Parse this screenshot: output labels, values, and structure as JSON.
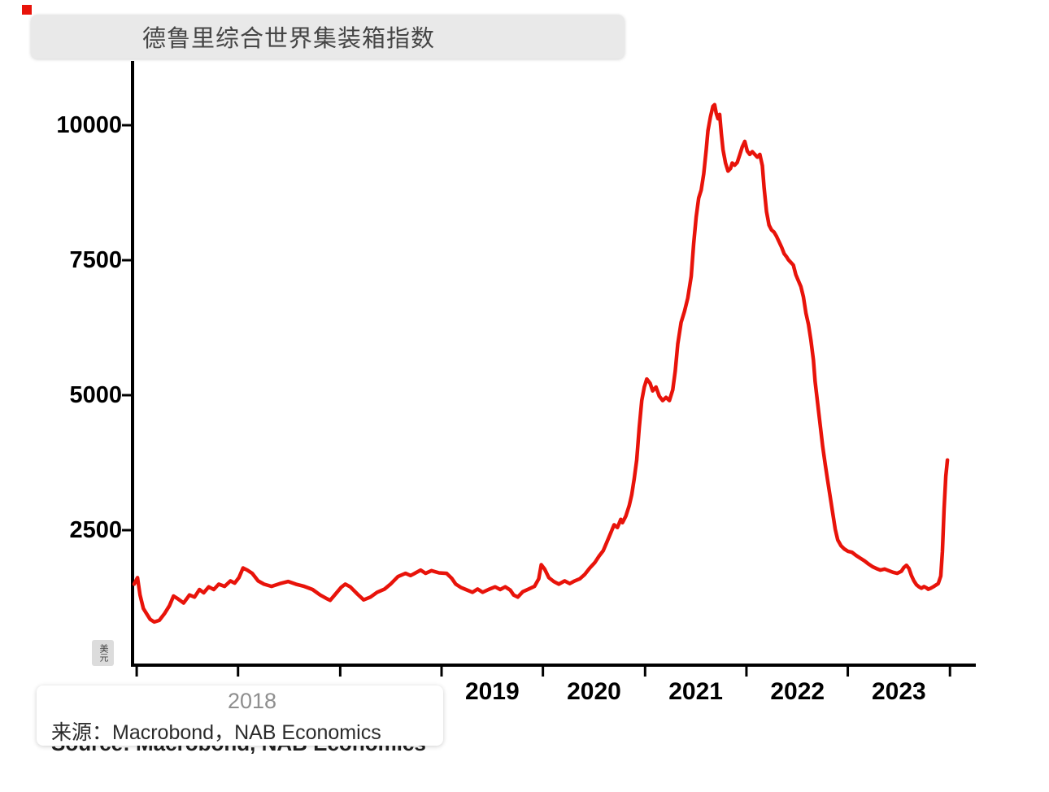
{
  "title": {
    "text": "德鲁里综合世界集装箱指数"
  },
  "y_axis_unit_label": "美元",
  "source_overlay": {
    "year_label": "2018",
    "text": "来源：Macrobond，NAB Economics"
  },
  "source_original": {
    "text": "Source: Macrobond, NAB Economics"
  },
  "chart_data": {
    "type": "line",
    "title": "德鲁里综合世界集装箱指数",
    "xlabel": "",
    "ylabel": "",
    "legend": "none",
    "grid": false,
    "series_color": "#e8130a",
    "axis_color": "#000000",
    "ylim": [
      0,
      11000
    ],
    "y_ticks": [
      2500,
      5000,
      7500,
      10000
    ],
    "x_note": "x stored as fraction of plot width; axis spans approx 2016 through early 2024, one visible tick per year start",
    "x_tick_marks": [
      0.003,
      0.124,
      0.246,
      0.367,
      0.488,
      0.61,
      0.731,
      0.852,
      0.974
    ],
    "x_tick_labels": [
      {
        "label": "2019",
        "pos": 0.4275
      },
      {
        "label": "2020",
        "pos": 0.549
      },
      {
        "label": "2021",
        "pos": 0.6705
      },
      {
        "label": "2022",
        "pos": 0.792
      },
      {
        "label": "2023",
        "pos": 0.913
      }
    ],
    "points": [
      [
        0.0,
        1500
      ],
      [
        0.004,
        1620
      ],
      [
        0.007,
        1300
      ],
      [
        0.011,
        1050
      ],
      [
        0.015,
        950
      ],
      [
        0.019,
        850
      ],
      [
        0.024,
        800
      ],
      [
        0.03,
        830
      ],
      [
        0.036,
        950
      ],
      [
        0.042,
        1100
      ],
      [
        0.047,
        1280
      ],
      [
        0.052,
        1230
      ],
      [
        0.059,
        1150
      ],
      [
        0.066,
        1300
      ],
      [
        0.072,
        1260
      ],
      [
        0.078,
        1400
      ],
      [
        0.083,
        1340
      ],
      [
        0.089,
        1450
      ],
      [
        0.095,
        1400
      ],
      [
        0.101,
        1500
      ],
      [
        0.108,
        1460
      ],
      [
        0.115,
        1560
      ],
      [
        0.12,
        1520
      ],
      [
        0.125,
        1620
      ],
      [
        0.13,
        1800
      ],
      [
        0.135,
        1760
      ],
      [
        0.141,
        1700
      ],
      [
        0.148,
        1560
      ],
      [
        0.155,
        1500
      ],
      [
        0.164,
        1460
      ],
      [
        0.174,
        1510
      ],
      [
        0.184,
        1550
      ],
      [
        0.193,
        1500
      ],
      [
        0.203,
        1460
      ],
      [
        0.213,
        1400
      ],
      [
        0.222,
        1300
      ],
      [
        0.229,
        1240
      ],
      [
        0.234,
        1200
      ],
      [
        0.24,
        1310
      ],
      [
        0.247,
        1440
      ],
      [
        0.252,
        1500
      ],
      [
        0.258,
        1450
      ],
      [
        0.267,
        1310
      ],
      [
        0.274,
        1210
      ],
      [
        0.282,
        1260
      ],
      [
        0.29,
        1350
      ],
      [
        0.299,
        1410
      ],
      [
        0.306,
        1500
      ],
      [
        0.315,
        1640
      ],
      [
        0.324,
        1700
      ],
      [
        0.33,
        1660
      ],
      [
        0.336,
        1710
      ],
      [
        0.342,
        1760
      ],
      [
        0.348,
        1700
      ],
      [
        0.355,
        1750
      ],
      [
        0.364,
        1710
      ],
      [
        0.373,
        1700
      ],
      [
        0.379,
        1610
      ],
      [
        0.384,
        1500
      ],
      [
        0.39,
        1440
      ],
      [
        0.396,
        1400
      ],
      [
        0.404,
        1350
      ],
      [
        0.41,
        1410
      ],
      [
        0.416,
        1350
      ],
      [
        0.423,
        1400
      ],
      [
        0.431,
        1450
      ],
      [
        0.437,
        1400
      ],
      [
        0.443,
        1450
      ],
      [
        0.449,
        1390
      ],
      [
        0.453,
        1300
      ],
      [
        0.458,
        1260
      ],
      [
        0.464,
        1360
      ],
      [
        0.471,
        1410
      ],
      [
        0.478,
        1460
      ],
      [
        0.483,
        1600
      ],
      [
        0.486,
        1860
      ],
      [
        0.49,
        1780
      ],
      [
        0.495,
        1620
      ],
      [
        0.501,
        1550
      ],
      [
        0.507,
        1500
      ],
      [
        0.514,
        1560
      ],
      [
        0.52,
        1510
      ],
      [
        0.526,
        1560
      ],
      [
        0.532,
        1600
      ],
      [
        0.538,
        1680
      ],
      [
        0.544,
        1800
      ],
      [
        0.55,
        1900
      ],
      [
        0.555,
        2020
      ],
      [
        0.56,
        2120
      ],
      [
        0.565,
        2300
      ],
      [
        0.569,
        2450
      ],
      [
        0.573,
        2600
      ],
      [
        0.577,
        2550
      ],
      [
        0.581,
        2700
      ],
      [
        0.583,
        2640
      ],
      [
        0.587,
        2760
      ],
      [
        0.591,
        2950
      ],
      [
        0.594,
        3150
      ],
      [
        0.597,
        3450
      ],
      [
        0.6,
        3800
      ],
      [
        0.603,
        4400
      ],
      [
        0.606,
        4900
      ],
      [
        0.609,
        5150
      ],
      [
        0.612,
        5300
      ],
      [
        0.616,
        5220
      ],
      [
        0.619,
        5080
      ],
      [
        0.623,
        5150
      ],
      [
        0.627,
        4980
      ],
      [
        0.631,
        4900
      ],
      [
        0.635,
        4960
      ],
      [
        0.639,
        4900
      ],
      [
        0.643,
        5100
      ],
      [
        0.646,
        5450
      ],
      [
        0.649,
        5950
      ],
      [
        0.653,
        6350
      ],
      [
        0.657,
        6550
      ],
      [
        0.661,
        6800
      ],
      [
        0.665,
        7200
      ],
      [
        0.668,
        7800
      ],
      [
        0.671,
        8300
      ],
      [
        0.674,
        8650
      ],
      [
        0.677,
        8800
      ],
      [
        0.68,
        9100
      ],
      [
        0.683,
        9550
      ],
      [
        0.685,
        9900
      ],
      [
        0.688,
        10150
      ],
      [
        0.691,
        10350
      ],
      [
        0.693,
        10380
      ],
      [
        0.695,
        10220
      ],
      [
        0.697,
        10120
      ],
      [
        0.699,
        10200
      ],
      [
        0.701,
        9850
      ],
      [
        0.703,
        9550
      ],
      [
        0.706,
        9300
      ],
      [
        0.709,
        9150
      ],
      [
        0.712,
        9200
      ],
      [
        0.714,
        9300
      ],
      [
        0.717,
        9260
      ],
      [
        0.72,
        9310
      ],
      [
        0.723,
        9450
      ],
      [
        0.726,
        9600
      ],
      [
        0.729,
        9700
      ],
      [
        0.732,
        9520
      ],
      [
        0.735,
        9460
      ],
      [
        0.738,
        9510
      ],
      [
        0.741,
        9460
      ],
      [
        0.744,
        9410
      ],
      [
        0.747,
        9460
      ],
      [
        0.75,
        9250
      ],
      [
        0.752,
        8850
      ],
      [
        0.755,
        8400
      ],
      [
        0.758,
        8150
      ],
      [
        0.761,
        8060
      ],
      [
        0.764,
        8020
      ],
      [
        0.767,
        7940
      ],
      [
        0.77,
        7840
      ],
      [
        0.773,
        7740
      ],
      [
        0.776,
        7620
      ],
      [
        0.779,
        7560
      ],
      [
        0.781,
        7510
      ],
      [
        0.784,
        7460
      ],
      [
        0.787,
        7410
      ],
      [
        0.79,
        7230
      ],
      [
        0.793,
        7120
      ],
      [
        0.796,
        7010
      ],
      [
        0.799,
        6820
      ],
      [
        0.802,
        6520
      ],
      [
        0.805,
        6310
      ],
      [
        0.808,
        6020
      ],
      [
        0.811,
        5650
      ],
      [
        0.813,
        5250
      ],
      [
        0.816,
        4850
      ],
      [
        0.819,
        4450
      ],
      [
        0.822,
        4050
      ],
      [
        0.825,
        3720
      ],
      [
        0.828,
        3420
      ],
      [
        0.831,
        3120
      ],
      [
        0.834,
        2820
      ],
      [
        0.837,
        2520
      ],
      [
        0.84,
        2320
      ],
      [
        0.844,
        2210
      ],
      [
        0.848,
        2150
      ],
      [
        0.852,
        2110
      ],
      [
        0.857,
        2090
      ],
      [
        0.862,
        2030
      ],
      [
        0.867,
        1980
      ],
      [
        0.872,
        1930
      ],
      [
        0.877,
        1870
      ],
      [
        0.882,
        1820
      ],
      [
        0.886,
        1790
      ],
      [
        0.891,
        1760
      ],
      [
        0.896,
        1780
      ],
      [
        0.901,
        1750
      ],
      [
        0.906,
        1720
      ],
      [
        0.911,
        1700
      ],
      [
        0.916,
        1740
      ],
      [
        0.919,
        1810
      ],
      [
        0.922,
        1850
      ],
      [
        0.925,
        1790
      ],
      [
        0.928,
        1660
      ],
      [
        0.931,
        1560
      ],
      [
        0.934,
        1490
      ],
      [
        0.937,
        1450
      ],
      [
        0.94,
        1425
      ],
      [
        0.943,
        1455
      ],
      [
        0.946,
        1430
      ],
      [
        0.948,
        1405
      ],
      [
        0.951,
        1425
      ],
      [
        0.954,
        1450
      ],
      [
        0.957,
        1480
      ],
      [
        0.96,
        1510
      ],
      [
        0.963,
        1650
      ],
      [
        0.965,
        2100
      ],
      [
        0.967,
        2900
      ],
      [
        0.969,
        3500
      ],
      [
        0.971,
        3800
      ]
    ]
  }
}
